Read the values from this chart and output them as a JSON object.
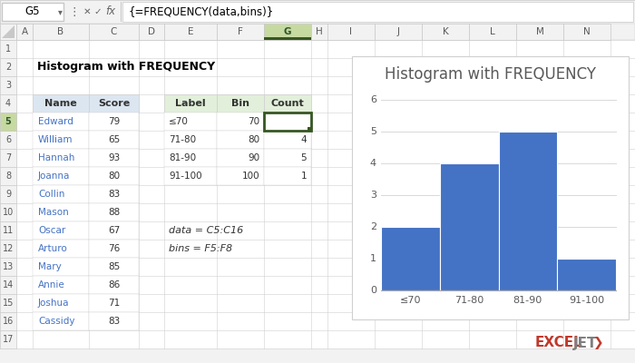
{
  "title": "Histogram with FREQUENCY",
  "spreadsheet_title": "Histogram with FREQUENCY",
  "formula_bar_cell": "G5",
  "formula_bar_formula": "{=FREQUENCY(data,bins)}",
  "col_headers": [
    "A",
    "B",
    "C",
    "D",
    "E",
    "F",
    "G",
    "H",
    "I",
    "J",
    "K",
    "L",
    "M",
    "N"
  ],
  "names": [
    "Edward",
    "William",
    "Hannah",
    "Joanna",
    "Collin",
    "Mason",
    "Oscar",
    "Arturo",
    "Mary",
    "Annie",
    "Joshua",
    "Cassidy"
  ],
  "scores": [
    79,
    65,
    93,
    80,
    83,
    88,
    67,
    76,
    85,
    86,
    71,
    83
  ],
  "labels": [
    "≤70",
    "71-80",
    "81-90",
    "91-100"
  ],
  "bins": [
    70,
    80,
    90,
    100
  ],
  "counts": [
    2,
    4,
    5,
    1
  ],
  "note_line1": "data = C5:C16",
  "note_line2": "bins = F5:F8",
  "bar_color": "#4472C4",
  "grid_color": "#d9d9d9",
  "header_bg_blue": "#dce6f1",
  "header_bg_green": "#e2efda",
  "selected_border": "#375623",
  "chart_title_color": "#595959",
  "chart_title_fontsize": 12,
  "axis_tick_fontsize": 8,
  "name_color": "#4472C4",
  "y_max": 6,
  "formula_color": "#c0392b",
  "exceljet_red": "#c0392b",
  "exceljet_gray": "#7f7f7f"
}
